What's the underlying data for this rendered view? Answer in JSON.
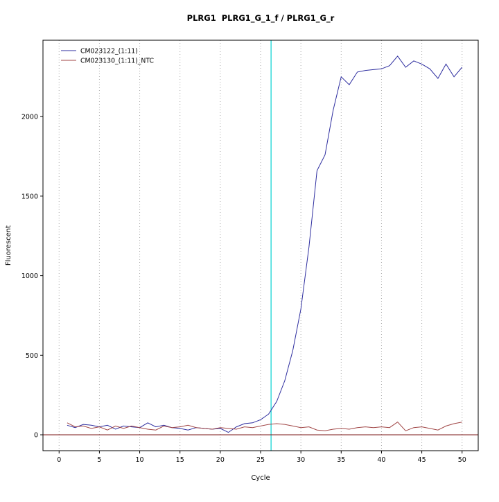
{
  "chart_data": {
    "type": "line",
    "title": "PLRG1  PLRG1_G_1_f / PLRG1_G_r",
    "xlabel": "Cycle",
    "ylabel": "Fluorescent",
    "xlim": [
      -2,
      52
    ],
    "ylim": [
      -100,
      2480
    ],
    "x_ticks": [
      0,
      5,
      10,
      15,
      20,
      25,
      30,
      35,
      40,
      45,
      50
    ],
    "y_ticks": [
      0,
      500,
      1000,
      1500,
      2000
    ],
    "grid": "vertical-dotted",
    "legend_position": "top-left",
    "colors": {
      "grid": "#aaaaaa",
      "box": "#000000",
      "threshold": "#00d2d2",
      "baseline": "#7f1f1f"
    },
    "threshold_line": {
      "x": 26.3,
      "color": "#00d2d2"
    },
    "baseline_line": {
      "y": 0,
      "color": "#7f1f1f"
    },
    "x": [
      1,
      2,
      3,
      4,
      5,
      6,
      7,
      8,
      9,
      10,
      11,
      12,
      13,
      14,
      15,
      16,
      17,
      18,
      19,
      20,
      21,
      22,
      23,
      24,
      25,
      26,
      27,
      28,
      29,
      30,
      31,
      32,
      33,
      34,
      35,
      36,
      37,
      38,
      39,
      40,
      41,
      42,
      43,
      44,
      45,
      46,
      47,
      48,
      49,
      50
    ],
    "series": [
      {
        "name": "CM023122_(1:11)",
        "color": "#2d2d9f",
        "values": [
          60,
          45,
          65,
          60,
          50,
          60,
          35,
          55,
          50,
          45,
          75,
          50,
          60,
          45,
          40,
          30,
          45,
          40,
          35,
          40,
          15,
          50,
          70,
          75,
          95,
          130,
          210,
          340,
          530,
          790,
          1180,
          1660,
          1760,
          2040,
          2250,
          2200,
          2280,
          2290,
          2295,
          2300,
          2320,
          2380,
          2310,
          2350,
          2330,
          2300,
          2240,
          2330,
          2250,
          2310
        ]
      },
      {
        "name": "CM023130_(1:11)_NTC",
        "color": "#a04545",
        "values": [
          75,
          50,
          55,
          40,
          50,
          30,
          55,
          40,
          55,
          45,
          35,
          30,
          55,
          45,
          50,
          60,
          45,
          40,
          35,
          45,
          40,
          35,
          50,
          45,
          55,
          65,
          70,
          65,
          55,
          45,
          50,
          30,
          25,
          35,
          40,
          35,
          45,
          50,
          45,
          50,
          45,
          80,
          25,
          45,
          50,
          40,
          30,
          55,
          70,
          80
        ]
      }
    ]
  }
}
